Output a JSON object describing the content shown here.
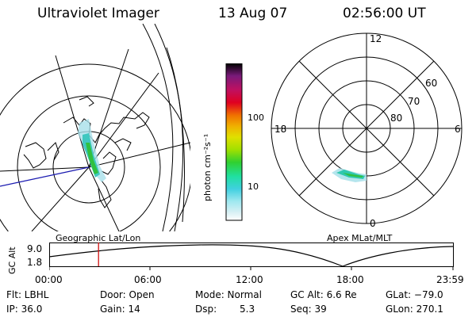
{
  "header": {
    "instrument": "Ultraviolet Imager",
    "date": "13 Aug 07",
    "time": "02:56:00 UT"
  },
  "maps": {
    "left_label": "Geographic Lat/Lon",
    "right_label": "Apex MLat/MLT",
    "polar_mlt": {
      "top": "12",
      "left": "18",
      "right": "6",
      "bottom": "0"
    },
    "polar_lat": [
      "60",
      "70",
      "80"
    ]
  },
  "colorbar": {
    "unit_label": "photon cm⁻²s⁻¹",
    "ticks": [
      "100",
      "10"
    ],
    "colors": [
      "#000000",
      "#7a1a7a",
      "#c01060",
      "#e00020",
      "#f07000",
      "#f0b000",
      "#e0e000",
      "#a0e000",
      "#30d030",
      "#20e0a0",
      "#40d0e0",
      "#a0e8f0",
      "#d8f0f4",
      "#ffffff"
    ]
  },
  "altitude_plot": {
    "ylabel": "GC Alt",
    "yticks": [
      "9.0",
      "1.8"
    ],
    "xticks": [
      "00:00",
      "06:00",
      "12:00",
      "18:00",
      "23:59"
    ],
    "marker_time": "02:56",
    "marker_color": "#d01010"
  },
  "info": {
    "row1": [
      "Flt: LBHL",
      "Door: Open",
      "Mode: Normal",
      "GC Alt: 6.6 Re",
      "GLat: −79.0"
    ],
    "row2": [
      "IP: 36.0",
      "Gain: 14",
      "Dsp:",
      "5.3",
      "Seq: 39",
      "GLon: 270.1"
    ]
  }
}
